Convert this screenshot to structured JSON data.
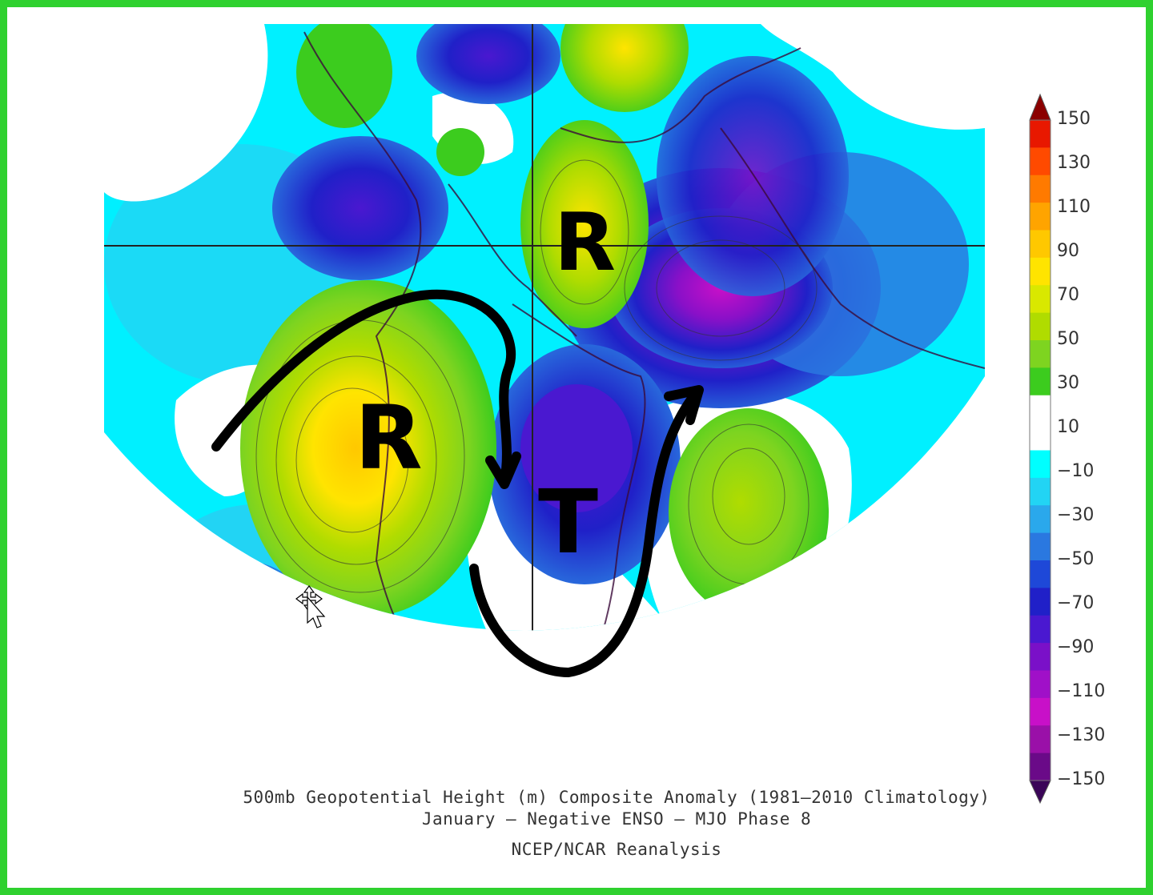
{
  "map": {
    "annotations": {
      "ridge_west": "R",
      "ridge_north": "R",
      "trough_east": "T"
    }
  },
  "legend": {
    "tick_labels": [
      "150",
      "130",
      "110",
      "90",
      "70",
      "50",
      "30",
      "10",
      "−10",
      "−30",
      "−50",
      "−70",
      "−90",
      "−110",
      "−130",
      "−150"
    ],
    "colors": [
      "#8b0000",
      "#e81800",
      "#ff4a00",
      "#ff7a00",
      "#ffa400",
      "#ffc800",
      "#ffe400",
      "#d9e800",
      "#b0dc00",
      "#7ed420",
      "#3ccc1e",
      "#ffffff",
      "#ffffff",
      "#00ffff",
      "#22d4f4",
      "#2aa8ec",
      "#2a78e0",
      "#1e48d8",
      "#2020c8",
      "#4a18d0",
      "#7a10c8",
      "#a010c8",
      "#c810c8",
      "#9a10a8",
      "#6a0a88",
      "#3a0558"
    ]
  },
  "caption": {
    "line1": "500mb Geopotential Height (m) Composite Anomaly (1981–2010 Climatology)",
    "line2": "January – Negative ENSO – MJO Phase 8",
    "line3": "NCEP/NCAR Reanalysis"
  },
  "cursor": {
    "icon": "move-cursor-icon"
  }
}
